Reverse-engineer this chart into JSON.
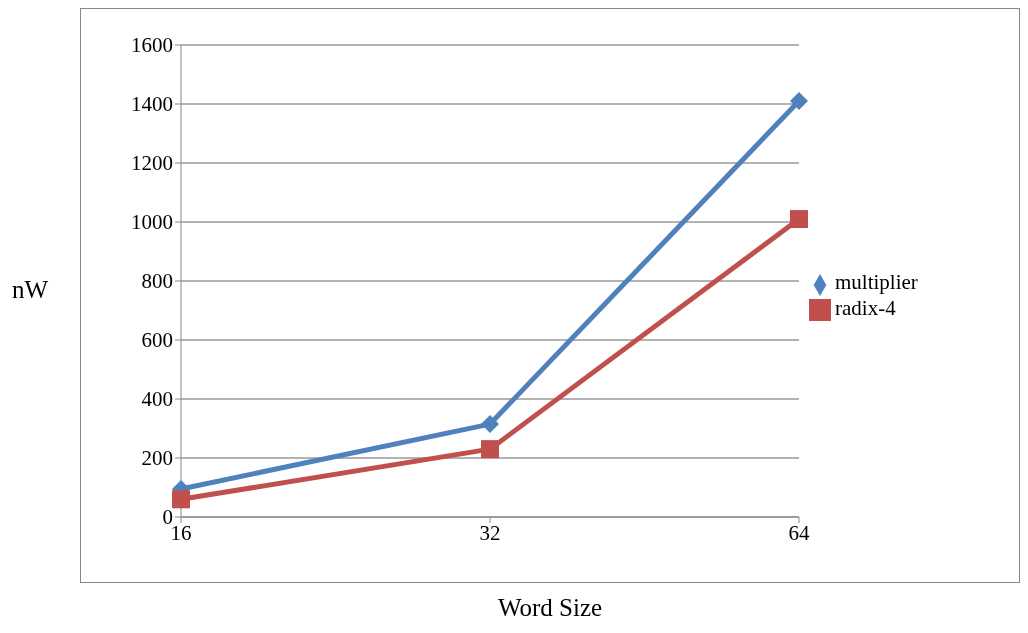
{
  "chart_data": {
    "type": "line",
    "xlabel": "Word Size",
    "ylabel": "nW",
    "categories": [
      "16",
      "32",
      "64"
    ],
    "series": [
      {
        "name": "multiplier",
        "color": "#4f81bd",
        "marker": "diamond",
        "values": [
          95,
          315,
          1410
        ]
      },
      {
        "name": "radix-4",
        "color": "#c0504d",
        "marker": "square",
        "values": [
          60,
          230,
          1010
        ]
      }
    ],
    "ylim": [
      0,
      1600
    ],
    "yticks": [
      0,
      200,
      400,
      600,
      800,
      1000,
      1200,
      1400,
      1600
    ],
    "grid": "y",
    "legend": "right"
  }
}
